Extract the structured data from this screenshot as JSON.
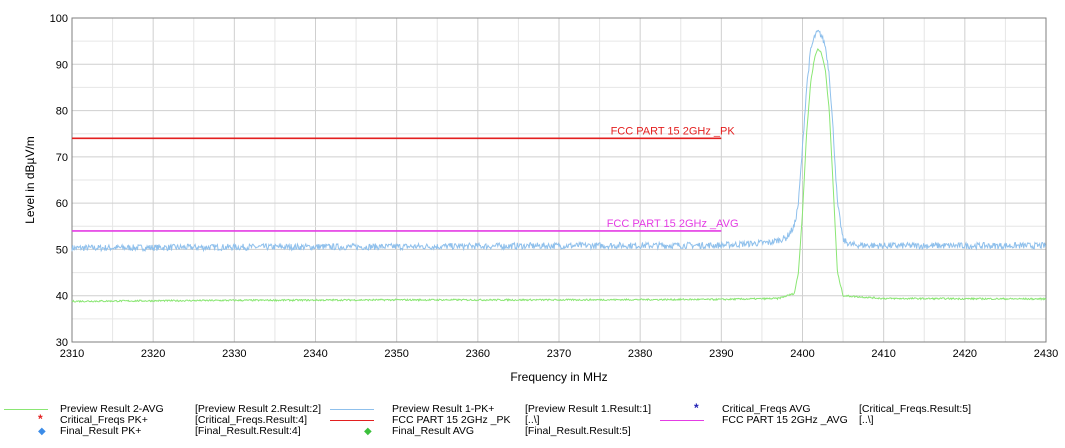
{
  "chart_data": {
    "type": "line",
    "title": "",
    "xlabel": "Frequency in MHz",
    "ylabel": "Level in dBµV/m",
    "xlim": [
      2310,
      2430
    ],
    "ylim": [
      30,
      100
    ],
    "xticks": [
      2310,
      2320,
      2330,
      2340,
      2350,
      2360,
      2370,
      2380,
      2390,
      2400,
      2410,
      2420,
      2430
    ],
    "yticks": [
      30,
      40,
      50,
      60,
      70,
      80,
      90,
      100
    ],
    "grid": true,
    "legend_placement": "bottom",
    "series": [
      {
        "name": "Preview Result 1-PK+",
        "color": "#8fc0ec",
        "x": [
          2310,
          2330,
          2350,
          2370,
          2390,
          2396,
          2398,
          2399,
          2399.5,
          2400,
          2400.5,
          2401,
          2401.5,
          2401.9,
          2402.3,
          2402.8,
          2403.3,
          2403.8,
          2404.3,
          2405,
          2406,
          2410,
          2430
        ],
        "y": [
          50.3,
          50.5,
          50.6,
          50.8,
          50.9,
          51.5,
          52.5,
          55,
          60,
          72,
          85,
          93,
          96,
          97,
          96.3,
          94,
          88,
          75,
          60,
          52,
          51,
          50.8,
          50.8
        ]
      },
      {
        "name": "Preview Result 2-AVG",
        "color": "#8ae673",
        "x": [
          2310,
          2330,
          2350,
          2370,
          2390,
          2397,
          2399,
          2399.5,
          2400,
          2400.5,
          2401,
          2401.5,
          2401.9,
          2402.3,
          2402.8,
          2403.3,
          2403.8,
          2404.3,
          2405,
          2410,
          2430
        ],
        "y": [
          38.8,
          39,
          39.1,
          39.1,
          39.2,
          39.4,
          40.5,
          45,
          58,
          75,
          86,
          91.5,
          93.4,
          92.5,
          89,
          80,
          63,
          45,
          40,
          39.4,
          39.3
        ]
      },
      {
        "name": "FCC PART 15 2GHz _PK",
        "color": "#e31f1f",
        "x": [
          2310,
          2390
        ],
        "y": [
          74,
          74
        ]
      },
      {
        "name": "FCC PART 15 2GHz _AVG",
        "color": "#e43ce4",
        "x": [
          2310,
          2390
        ],
        "y": [
          54,
          54
        ]
      }
    ],
    "limit_labels": [
      {
        "text": "FCC PART 15 2GHz _PK",
        "x": 2384,
        "y": 74,
        "color": "#e31f1f"
      },
      {
        "text": "FCC PART 15 2GHz _AVG",
        "x": 2384,
        "y": 54,
        "color": "#e43ce4"
      }
    ]
  },
  "legend": {
    "entries": [
      {
        "name": "Preview Result 2-AVG",
        "ref": "[Preview Result 2.Result:2]",
        "symbol": "line",
        "color": "#8ae673",
        "bold": false
      },
      {
        "name": "Preview Result 1-PK+",
        "ref": "[Preview Result 1.Result:1]",
        "symbol": "line",
        "color": "#8fc0ec",
        "bold": false
      },
      {
        "name": "Critical_Freqs AVG",
        "ref": "[Critical_Freqs.Result:5]",
        "symbol": "star",
        "color": "#1f1fb4",
        "bold": false
      },
      {
        "name": "Critical_Freqs PK+",
        "ref": "[Critical_Freqs.Result:4]",
        "symbol": "star",
        "color": "#e31f1f",
        "bold": false
      },
      {
        "name": "FCC PART 15 2GHz _PK",
        "ref": "[..\\]",
        "symbol": "line",
        "color": "#e31f1f",
        "bold": false
      },
      {
        "name": "FCC PART 15 2GHz _AVG",
        "ref": "[..\\]",
        "symbol": "line",
        "color": "#e43ce4",
        "bold": false
      },
      {
        "name": "Final_Result PK+",
        "ref": "[Final_Result.Result:4]",
        "symbol": "diamond",
        "color": "#3c8ce8",
        "bold": false
      },
      {
        "name": "Final_Result AVG",
        "ref": "[Final_Result.Result:5]",
        "symbol": "diamond",
        "color": "#3cc03c",
        "bold": false
      }
    ]
  }
}
